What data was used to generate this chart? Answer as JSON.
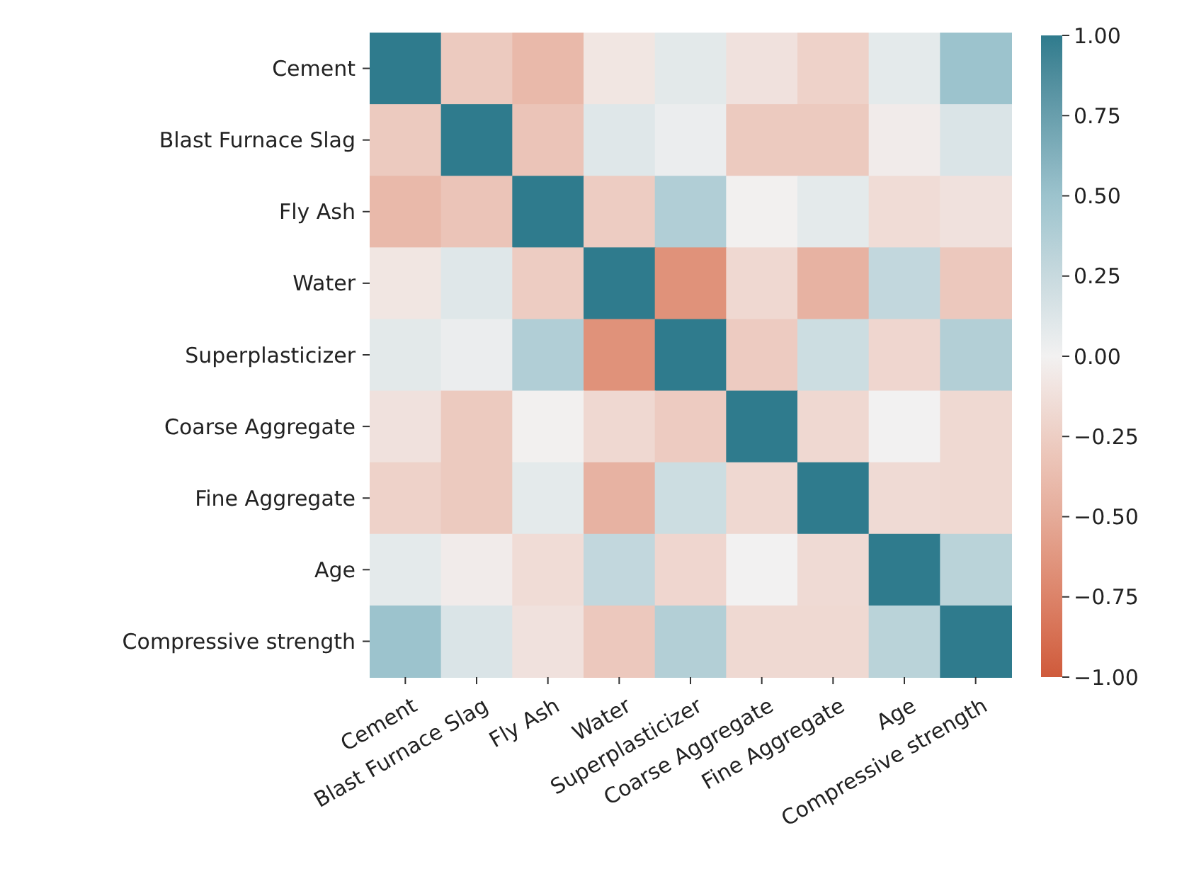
{
  "chart_data": {
    "type": "heatmap",
    "categories": [
      "Cement",
      "Blast Furnace Slag",
      "Fly Ash",
      "Water",
      "Superplasticizer",
      "Coarse Aggregate",
      "Fine Aggregate",
      "Age",
      "Compressive strength"
    ],
    "y_categories": [
      "Cement",
      "Blast Furnace Slag",
      "Fly Ash",
      "Water",
      "Superplasticizer",
      "Coarse Aggregate",
      "Fine Aggregate",
      "Age",
      "Compressive strength"
    ],
    "cells": [
      [
        1,
        -0.28,
        -0.4,
        -0.08,
        0.09,
        -0.11,
        -0.22,
        0.08,
        0.5
      ],
      [
        -0.28,
        1,
        -0.32,
        0.11,
        0.04,
        -0.28,
        -0.28,
        -0.04,
        0.14
      ],
      [
        -0.4,
        -0.32,
        1,
        -0.26,
        0.38,
        -0.01,
        0.08,
        -0.15,
        -0.11
      ],
      [
        -0.08,
        0.11,
        -0.26,
        1,
        -0.66,
        -0.18,
        -0.45,
        0.28,
        -0.29
      ],
      [
        0.09,
        0.04,
        0.38,
        -0.66,
        1,
        -0.27,
        0.22,
        -0.19,
        0.37
      ],
      [
        -0.11,
        -0.28,
        -0.01,
        -0.18,
        -0.27,
        1,
        -0.18,
        0,
        -0.17
      ],
      [
        -0.22,
        -0.28,
        0.08,
        -0.45,
        0.22,
        -0.18,
        1,
        -0.16,
        -0.17
      ],
      [
        0.08,
        -0.04,
        -0.15,
        0.28,
        -0.19,
        0,
        -0.16,
        1,
        0.33
      ],
      [
        0.5,
        0.14,
        -0.11,
        -0.29,
        0.37,
        -0.17,
        -0.17,
        0.33,
        1
      ]
    ],
    "clim": [
      -1,
      1
    ],
    "cticks": [
      {
        "value": 1,
        "label": "1.00"
      },
      {
        "value": 0.75,
        "label": "0.75"
      },
      {
        "value": 0.5,
        "label": "0.50"
      },
      {
        "value": 0.25,
        "label": "0.25"
      },
      {
        "value": 0,
        "label": "0.00"
      },
      {
        "value": -0.25,
        "label": "−0.25"
      },
      {
        "value": -0.5,
        "label": "−0.50"
      },
      {
        "value": -0.75,
        "label": "−0.75"
      },
      {
        "value": -1,
        "label": "−1.00"
      }
    ]
  }
}
